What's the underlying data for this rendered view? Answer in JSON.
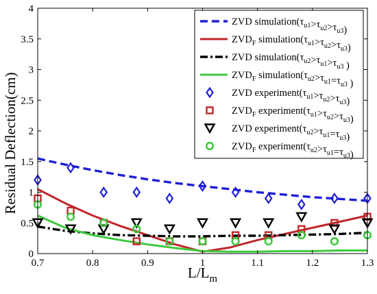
{
  "chart_data": {
    "type": "line",
    "xlabel": "L/L",
    "xlabel_sub": "m",
    "ylabel": "Residual Deflection(cm)",
    "xlim": [
      0.7,
      1.3
    ],
    "ylim": [
      0,
      4
    ],
    "xticks": [
      0.7,
      0.8,
      0.9,
      1,
      1.1,
      1.2,
      1.3
    ],
    "xtick_labels": [
      "0.7",
      "0.8",
      "0.9",
      "1",
      "1.1",
      "1.2",
      "1.3"
    ],
    "yticks": [
      0,
      0.5,
      1,
      1.5,
      2,
      2.5,
      3,
      3.5,
      4
    ],
    "ytick_labels": [
      "0",
      "0.5",
      "1",
      "1.5",
      "2",
      "2.5",
      "3",
      "3.5",
      "4"
    ],
    "grid": false,
    "legend_position": "top-right",
    "series": [
      {
        "name": "ZVD simulation(τu1>τu2>τu3)",
        "kind": "line",
        "style": "dashed",
        "color": "#1f1fd6",
        "x": [
          0.7,
          0.75,
          0.8,
          0.85,
          0.9,
          0.95,
          1.0,
          1.05,
          1.1,
          1.15,
          1.2,
          1.25,
          1.3
        ],
        "y": [
          1.55,
          1.45,
          1.36,
          1.28,
          1.21,
          1.15,
          1.1,
          1.05,
          1.0,
          0.96,
          0.92,
          0.89,
          0.86
        ]
      },
      {
        "name": "ZVDF simulation(τu1>τu2>τu3)",
        "kind": "line",
        "style": "solid",
        "color": "#c0262b",
        "x": [
          0.7,
          0.75,
          0.8,
          0.85,
          0.9,
          0.95,
          1.0,
          1.05,
          1.1,
          1.15,
          1.2,
          1.25,
          1.3
        ],
        "y": [
          1.05,
          0.82,
          0.62,
          0.45,
          0.3,
          0.15,
          0.03,
          0.1,
          0.22,
          0.32,
          0.42,
          0.52,
          0.62
        ]
      },
      {
        "name": "ZVD simulation(τu2>τu1>τu3 )",
        "kind": "line",
        "style": "dashdot",
        "color": "#000000",
        "x": [
          0.7,
          0.75,
          0.8,
          0.85,
          0.9,
          0.95,
          1.0,
          1.05,
          1.1,
          1.15,
          1.2,
          1.25,
          1.3
        ],
        "y": [
          0.44,
          0.37,
          0.33,
          0.3,
          0.29,
          0.28,
          0.28,
          0.29,
          0.29,
          0.3,
          0.31,
          0.32,
          0.34
        ]
      },
      {
        "name": "ZVDF simulation(τu2>τu1=τu3 )",
        "kind": "line",
        "style": "solid",
        "color": "#3ec93e",
        "x": [
          0.7,
          0.75,
          0.8,
          0.85,
          0.9,
          0.95,
          1.0,
          1.05,
          1.1,
          1.15,
          1.2,
          1.25,
          1.3
        ],
        "y": [
          0.62,
          0.42,
          0.3,
          0.22,
          0.15,
          0.09,
          0.04,
          0.03,
          0.03,
          0.04,
          0.04,
          0.05,
          0.05
        ]
      },
      {
        "name": "ZVD experiment(τu1>τu2>τu3)",
        "kind": "marker",
        "marker": "diamond",
        "color": "#1f1fd6",
        "x": [
          0.7,
          0.76,
          0.82,
          0.88,
          0.94,
          1.0,
          1.06,
          1.12,
          1.18,
          1.24,
          1.3
        ],
        "y": [
          1.2,
          1.4,
          1.0,
          1.0,
          0.9,
          1.1,
          1.0,
          0.9,
          0.8,
          0.9,
          0.9
        ]
      },
      {
        "name": "ZVDF experiment(τu1>τu2>τu3)",
        "kind": "marker",
        "marker": "square",
        "color": "#c0262b",
        "x": [
          0.7,
          0.76,
          0.82,
          0.88,
          0.94,
          1.0,
          1.06,
          1.12,
          1.18,
          1.24,
          1.3
        ],
        "y": [
          0.9,
          0.7,
          0.5,
          0.2,
          0.2,
          0.2,
          0.3,
          0.3,
          0.4,
          0.5,
          0.6
        ]
      },
      {
        "name": "ZVD experiment(τu2>τu1=τu3)",
        "kind": "marker",
        "marker": "triangle-down",
        "color": "#000000",
        "x": [
          0.7,
          0.76,
          0.82,
          0.88,
          0.94,
          1.0,
          1.06,
          1.12,
          1.18,
          1.24,
          1.3
        ],
        "y": [
          0.5,
          0.4,
          0.4,
          0.5,
          0.4,
          0.5,
          0.5,
          0.5,
          0.6,
          0.4,
          0.5
        ]
      },
      {
        "name": "ZVDF experiment(τu2>τu1=τu3)",
        "kind": "marker",
        "marker": "circle",
        "color": "#3ec93e",
        "x": [
          0.7,
          0.76,
          0.82,
          0.88,
          0.94,
          1.0,
          1.06,
          1.12,
          1.18,
          1.24,
          1.3
        ],
        "y": [
          0.8,
          0.6,
          0.5,
          0.4,
          0.2,
          0.2,
          0.2,
          0.2,
          0.3,
          0.2,
          0.3
        ]
      }
    ],
    "legend": [
      {
        "marker": "dashed-line",
        "color": "#1f1fd6",
        "name": "ZVD",
        "sub": "",
        "desc": "simulation",
        "condition": [
          [
            "τ",
            "u1"
          ],
          [
            ">",
            ""
          ],
          [
            "τ",
            "u2"
          ],
          [
            ">",
            ""
          ],
          [
            "τ",
            "u3"
          ]
        ],
        "close": ")"
      },
      {
        "marker": "solid-line",
        "color": "#c0262b",
        "name": "ZVD",
        "sub": "F",
        "desc": "simulation",
        "condition": [
          [
            "τ",
            "u1"
          ],
          [
            ">",
            ""
          ],
          [
            "τ",
            "u2"
          ],
          [
            ">",
            ""
          ],
          [
            "τ",
            "u3"
          ]
        ],
        "close": ")"
      },
      {
        "marker": "dashdot-line",
        "color": "#000000",
        "name": "ZVD",
        "sub": "",
        "desc": "simulation",
        "condition": [
          [
            "τ",
            "u2"
          ],
          [
            ">",
            ""
          ],
          [
            "τ",
            "u1"
          ],
          [
            ">",
            ""
          ],
          [
            "τ",
            "u3"
          ]
        ],
        "close": " )"
      },
      {
        "marker": "solid-line",
        "color": "#3ec93e",
        "name": "ZVD",
        "sub": "F",
        "desc": "simulation",
        "condition": [
          [
            "τ",
            "u2"
          ],
          [
            ">",
            ""
          ],
          [
            "τ",
            "u1"
          ],
          [
            "=",
            ""
          ],
          [
            "τ",
            "u3"
          ]
        ],
        "close": " )"
      },
      {
        "marker": "diamond",
        "color": "#1f1fd6",
        "name": "ZVD",
        "sub": "",
        "desc": "experiment",
        "condition": [
          [
            "τ",
            "u1"
          ],
          [
            ">",
            ""
          ],
          [
            "τ",
            "u2"
          ],
          [
            ">",
            ""
          ],
          [
            "τ",
            "u3"
          ]
        ],
        "close": ")"
      },
      {
        "marker": "square",
        "color": "#c0262b",
        "name": "ZVD",
        "sub": "F",
        "desc": "experiment",
        "condition": [
          [
            "τ",
            "u1"
          ],
          [
            ">",
            ""
          ],
          [
            "τ",
            "u2"
          ],
          [
            ">",
            ""
          ],
          [
            "τ",
            "u3"
          ]
        ],
        "close": ")"
      },
      {
        "marker": "triangle-down",
        "color": "#000000",
        "name": "ZVD",
        "sub": "",
        "desc": "experiment",
        "condition": [
          [
            "τ",
            "u2"
          ],
          [
            ">",
            ""
          ],
          [
            "τ",
            "u1"
          ],
          [
            "=",
            ""
          ],
          [
            "τ",
            "u3"
          ]
        ],
        "close": ")"
      },
      {
        "marker": "circle",
        "color": "#3ec93e",
        "name": "ZVD",
        "sub": "F",
        "desc": "experiment",
        "condition": [
          [
            "τ",
            "u2"
          ],
          [
            ">",
            ""
          ],
          [
            "τ",
            "u1"
          ],
          [
            "=",
            ""
          ],
          [
            "τ",
            "u3"
          ]
        ],
        "close": ")"
      }
    ]
  }
}
